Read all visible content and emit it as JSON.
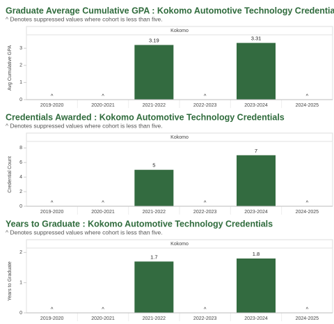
{
  "chart_data": [
    {
      "type": "bar",
      "title": "Graduate Average Cumulative GPA : Kokomo Automotive Technology Credentials",
      "subtitle": "^ Denotes suppressed values where cohort is less than five.",
      "panel_label": "Kokomo",
      "y_label": "Avg Cumulative GPA",
      "categories": [
        "2019-2020",
        "2020-2021",
        "2021-2022",
        "2022-2023",
        "2023-2024",
        "2024-2025"
      ],
      "values": [
        null,
        null,
        3.19,
        null,
        3.31,
        null
      ],
      "value_labels": [
        "^",
        "^",
        "3.19",
        "^",
        "3.31",
        "^"
      ],
      "color": "#336b40",
      "ylim": [
        0,
        3.7
      ],
      "yticks": [
        0,
        1,
        2,
        3
      ]
    },
    {
      "type": "bar",
      "title": "Credentials Awarded : Kokomo Automotive Technology Credentials",
      "subtitle": "^ Denotes suppressed values where cohort is less than five.",
      "panel_label": "Kokomo",
      "y_label": "Credential Count",
      "categories": [
        "2019-2020",
        "2020-2021",
        "2021-2022",
        "2022-2023",
        "2023-2024",
        "2024-2025"
      ],
      "values": [
        null,
        null,
        5,
        null,
        7,
        null
      ],
      "value_labels": [
        "^",
        "^",
        "5",
        "^",
        "7",
        "^"
      ],
      "color": "#336b40",
      "ylim": [
        0,
        8.7
      ],
      "yticks": [
        0,
        2,
        4,
        6,
        8
      ]
    },
    {
      "type": "bar",
      "title": "Years to Graduate : Kokomo Automotive Technology Credentials",
      "subtitle": "^ Denotes suppressed values where cohort is less than five.",
      "panel_label": "Kokomo",
      "y_label": "Years to Graduate",
      "categories": [
        "2019-2020",
        "2020-2021",
        "2021-2022",
        "2022-2023",
        "2023-2024",
        "2024-2025"
      ],
      "values": [
        null,
        null,
        1.7,
        null,
        1.8,
        null
      ],
      "value_labels": [
        "^",
        "^",
        "1.7",
        "^",
        "1.8",
        "^"
      ],
      "color": "#336b40",
      "ylim": [
        0,
        2.1
      ],
      "yticks": [
        0,
        1,
        2
      ]
    }
  ]
}
